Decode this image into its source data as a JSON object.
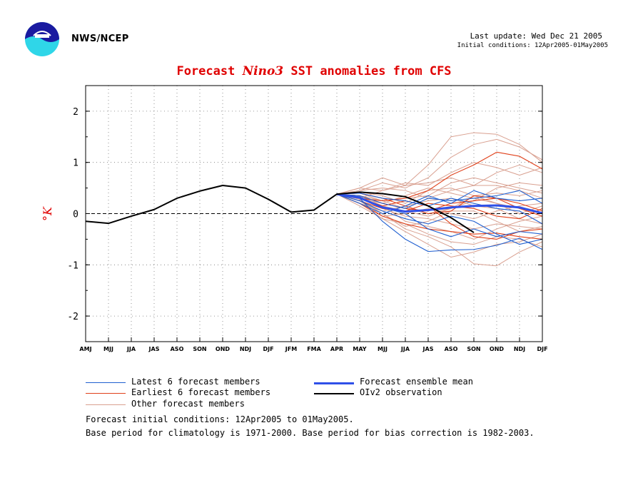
{
  "header": {
    "org": "NWS/NCEP",
    "last_update": "Last update: Wed Dec 21 2005",
    "initial_conditions": "Initial conditions: 12Apr2005-01May2005"
  },
  "title": {
    "prefix": "Forecast",
    "index": "Nino3",
    "suffix": "SST anomalies from CFS"
  },
  "legend": {
    "latest": "Latest 6 forecast members",
    "earliest": "Earliest 6 forecast members",
    "other": "Other forecast members",
    "mean": "Forecast ensemble mean",
    "obs": "OIv2 observation"
  },
  "footer": {
    "line1": "Forecast initial conditions: 12Apr2005 to 01May2005.",
    "line2": "Base period for climatology is 1971-2000. Base period for bias correction is 1982-2003."
  },
  "colors": {
    "title": "#e00000",
    "latest": "#1f5fd0",
    "earliest": "#e0401a",
    "other": "#d9a090",
    "mean": "#2f50e8",
    "obs": "#000000"
  },
  "chart_data": {
    "type": "line",
    "ylabel": "°K",
    "ylim": [
      -2.5,
      2.5
    ],
    "yticks": [
      -2,
      -1,
      0,
      1,
      2
    ],
    "categories": [
      "AMJ",
      "MJJ",
      "JJA",
      "JAS",
      "ASO",
      "SON",
      "OND",
      "NDJ",
      "DJF",
      "JFM",
      "FMA",
      "APR",
      "MAY",
      "MJJ",
      "JJA",
      "JAS",
      "ASO",
      "SON",
      "OND",
      "NDJ",
      "DJF"
    ],
    "grid": "dotted",
    "zero_line": "dashed",
    "observation": [
      -0.15,
      -0.19,
      -0.05,
      0.08,
      0.3,
      0.44,
      0.55,
      0.5,
      0.28,
      0.03,
      0.07,
      0.38,
      0.42,
      0.39,
      0.33,
      0.15,
      -0.08,
      -0.37
    ],
    "ensemble_mean": [
      null,
      null,
      null,
      null,
      null,
      null,
      null,
      null,
      null,
      null,
      null,
      0.38,
      0.31,
      0.12,
      0.04,
      0.07,
      0.12,
      0.15,
      0.16,
      0.12,
      0.01
    ],
    "latest_members": [
      [
        0.38,
        0.3,
        -0.15,
        -0.5,
        -0.74,
        -0.71,
        -0.7,
        -0.62,
        -0.48,
        -0.7
      ],
      [
        0.38,
        0.35,
        0.2,
        0.1,
        0.3,
        0.25,
        0.3,
        0.35,
        0.45,
        0.2
      ],
      [
        0.38,
        0.25,
        0.05,
        -0.1,
        -0.2,
        -0.05,
        -0.15,
        -0.4,
        -0.6,
        -0.5
      ],
      [
        0.38,
        0.4,
        0.3,
        0.25,
        0.15,
        0.3,
        0.2,
        0.1,
        0.05,
        -0.2
      ],
      [
        0.38,
        0.2,
        0.0,
        0.15,
        0.35,
        0.2,
        0.45,
        0.3,
        0.25,
        0.3
      ],
      [
        0.38,
        0.33,
        0.12,
        0.0,
        -0.3,
        -0.45,
        -0.3,
        -0.45,
        -0.35,
        -0.4
      ]
    ],
    "earliest_members": [
      [
        0.38,
        0.3,
        0.25,
        0.3,
        0.45,
        0.75,
        0.95,
        1.2,
        1.12,
        0.87
      ],
      [
        0.38,
        0.2,
        -0.05,
        -0.2,
        -0.3,
        -0.35,
        -0.4,
        -0.38,
        -0.45,
        -0.5
      ],
      [
        0.38,
        0.35,
        0.2,
        0.1,
        0.05,
        0.2,
        0.25,
        0.3,
        0.1,
        -0.05
      ],
      [
        0.38,
        0.25,
        0.1,
        0.05,
        0.2,
        0.15,
        0.1,
        -0.05,
        -0.1,
        0.1
      ],
      [
        0.38,
        0.3,
        0.15,
        0.25,
        0.15,
        -0.2,
        -0.45,
        -0.5,
        -0.35,
        -0.3
      ],
      [
        0.38,
        0.4,
        0.3,
        0.15,
        0.0,
        0.05,
        0.35,
        0.3,
        0.2,
        0.05
      ]
    ],
    "other_members": [
      [
        0.38,
        0.5,
        0.45,
        0.55,
        0.95,
        1.5,
        1.58,
        1.55,
        1.35,
        1.0
      ],
      [
        0.38,
        0.45,
        0.6,
        0.5,
        0.7,
        1.1,
        1.35,
        1.45,
        1.3,
        1.05
      ],
      [
        0.38,
        0.3,
        0.45,
        0.6,
        0.55,
        0.8,
        1.0,
        0.9,
        0.75,
        0.9
      ],
      [
        0.38,
        0.25,
        0.0,
        -0.3,
        -0.45,
        -0.65,
        -0.98,
        -1.02,
        -0.75,
        -0.55
      ],
      [
        0.38,
        0.2,
        -0.1,
        -0.35,
        -0.6,
        -0.85,
        -0.75,
        -0.6,
        -0.55,
        -0.4
      ],
      [
        0.38,
        0.35,
        0.25,
        0.3,
        0.35,
        0.6,
        0.7,
        0.6,
        0.5,
        0.4
      ],
      [
        0.38,
        0.4,
        0.25,
        0.1,
        0.0,
        0.1,
        0.25,
        0.5,
        0.6,
        0.55
      ],
      [
        0.38,
        0.3,
        0.1,
        -0.05,
        -0.1,
        -0.2,
        -0.3,
        -0.2,
        -0.25,
        -0.3
      ],
      [
        0.38,
        0.15,
        -0.1,
        -0.2,
        -0.4,
        -0.55,
        -0.6,
        -0.45,
        -0.5,
        -0.65
      ],
      [
        0.38,
        0.45,
        0.5,
        0.45,
        0.3,
        0.45,
        0.55,
        0.55,
        0.45,
        0.3
      ],
      [
        0.38,
        0.3,
        0.2,
        0.35,
        0.5,
        0.4,
        0.3,
        0.2,
        0.1,
        0.0
      ],
      [
        0.38,
        0.25,
        -0.05,
        0.0,
        0.1,
        0.0,
        -0.1,
        0.05,
        0.15,
        0.2
      ],
      [
        0.38,
        0.35,
        0.15,
        -0.15,
        -0.25,
        -0.35,
        -0.5,
        -0.3,
        -0.15,
        -0.05
      ],
      [
        0.38,
        0.5,
        0.7,
        0.55,
        0.6,
        0.7,
        0.55,
        0.8,
        0.95,
        0.8
      ],
      [
        0.38,
        0.2,
        0.05,
        0.15,
        0.25,
        0.3,
        0.15,
        0.1,
        -0.1,
        -0.2
      ],
      [
        0.38,
        0.28,
        0.0,
        -0.25,
        -0.15,
        0.05,
        0.05,
        -0.15,
        -0.35,
        -0.25
      ],
      [
        0.38,
        0.42,
        0.35,
        0.2,
        0.45,
        0.5,
        0.35,
        0.4,
        0.35,
        0.45
      ],
      [
        0.38,
        0.3,
        0.15,
        0.05,
        -0.05,
        0.1,
        0.35,
        0.2,
        0.0,
        0.15
      ]
    ]
  }
}
